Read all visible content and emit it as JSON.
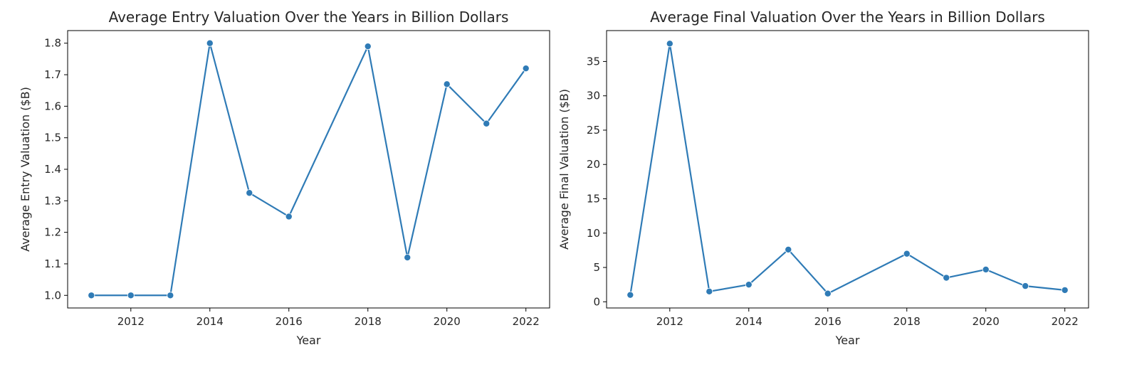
{
  "chart_data": [
    {
      "type": "line",
      "title": "Average Entry Valuation Over the Years in Billion Dollars",
      "xlabel": "Year",
      "ylabel": "Average Entry Valuation ($B)",
      "x": [
        2011,
        2012,
        2013,
        2014,
        2015,
        2016,
        2018,
        2019,
        2020,
        2021,
        2022
      ],
      "series": [
        {
          "values": [
            1.0,
            1.0,
            1.0,
            1.8,
            1.325,
            1.25,
            1.79,
            1.12,
            1.67,
            1.545,
            1.72
          ]
        }
      ],
      "xlim": [
        2010.4,
        2022.6
      ],
      "ylim": [
        0.96,
        1.84
      ],
      "xticks": [
        2012,
        2014,
        2016,
        2018,
        2020,
        2022
      ],
      "yticks": [
        1.0,
        1.1,
        1.2,
        1.3,
        1.4,
        1.5,
        1.6,
        1.7,
        1.8
      ],
      "ytick_labels": [
        "1.0",
        "1.1",
        "1.2",
        "1.3",
        "1.4",
        "1.5",
        "1.6",
        "1.7",
        "1.8"
      ],
      "grid": false,
      "markers": "circle",
      "color": "#2f7bb6"
    },
    {
      "type": "line",
      "title": "Average Final Valuation Over the Years in Billion Dollars",
      "xlabel": "Year",
      "ylabel": "Average Final Valuation ($B)",
      "x": [
        2011,
        2012,
        2013,
        2014,
        2015,
        2016,
        2018,
        2019,
        2020,
        2021,
        2022
      ],
      "series": [
        {
          "values": [
            1.0,
            37.6,
            1.5,
            2.5,
            7.6,
            1.2,
            7.0,
            3.5,
            4.7,
            2.3,
            1.7
          ]
        }
      ],
      "xlim": [
        2010.4,
        2022.6
      ],
      "ylim": [
        -0.9,
        39.5
      ],
      "xticks": [
        2012,
        2014,
        2016,
        2018,
        2020,
        2022
      ],
      "yticks": [
        0,
        5,
        10,
        15,
        20,
        25,
        30,
        35
      ],
      "ytick_labels": [
        "0",
        "5",
        "10",
        "15",
        "20",
        "25",
        "30",
        "35"
      ],
      "grid": false,
      "markers": "circle",
      "color": "#2f7bb6"
    }
  ]
}
